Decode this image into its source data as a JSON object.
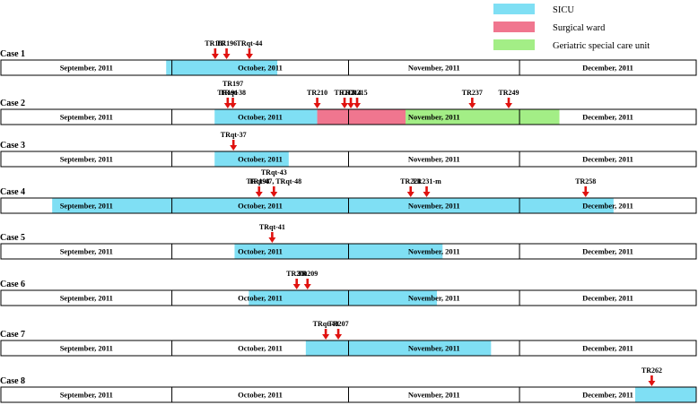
{
  "legend": [
    {
      "key": "sicu",
      "label": "SICU",
      "color": "#7fdff4"
    },
    {
      "key": "surgical",
      "label": "Surgical ward",
      "color": "#f0768f"
    },
    {
      "key": "geriatric",
      "label": "Geriatric special care unit",
      "color": "#a3ee86"
    }
  ],
  "colors": {
    "marker": "#e0120f",
    "border": "#000000"
  },
  "time_axis": {
    "start_day": 0,
    "end_day": 122
  },
  "months": [
    {
      "label": "September, 2011",
      "start_day": 0,
      "end_day": 30
    },
    {
      "label": "October, 2011",
      "start_day": 30,
      "end_day": 61
    },
    {
      "label": "November, 2011",
      "start_day": 61,
      "end_day": 91
    },
    {
      "label": "December, 2011",
      "start_day": 91,
      "end_day": 122
    }
  ],
  "cases": [
    {
      "label": "Case 1",
      "stays": [
        {
          "unit": "sicu",
          "start_day": 29,
          "end_day": 48.5
        }
      ],
      "markers": [
        {
          "day": 37.6,
          "label_lines": [
            "TR187"
          ]
        },
        {
          "day": 39.6,
          "label_lines": [
            "TR196"
          ]
        },
        {
          "day": 43.6,
          "label_lines": [
            "TRqt-44"
          ]
        }
      ]
    },
    {
      "label": "Case  2",
      "stays": [
        {
          "unit": "sicu",
          "start_day": 37.5,
          "end_day": 55.5
        },
        {
          "unit": "surgical",
          "start_day": 55.5,
          "end_day": 71
        },
        {
          "unit": "geriatric",
          "start_day": 71,
          "end_day": 98
        }
      ],
      "markers": [
        {
          "day": 39.8,
          "label_lines": [
            "TR191"
          ]
        },
        {
          "day": 40.7,
          "label_lines": [
            "TR197",
            "TRqt-38"
          ]
        },
        {
          "day": 55.5,
          "label_lines": [
            "TR210"
          ]
        },
        {
          "day": 60.3,
          "label_lines": [
            "TR213"
          ]
        },
        {
          "day": 61.4,
          "label_lines": [
            "TR214"
          ]
        },
        {
          "day": 62.5,
          "label_lines": [
            "TR215"
          ]
        },
        {
          "day": 82.7,
          "label_lines": [
            "TR237"
          ]
        },
        {
          "day": 89.1,
          "label_lines": [
            "TR249"
          ]
        }
      ]
    },
    {
      "label": "Case 3",
      "stays": [
        {
          "unit": "sicu",
          "start_day": 37.5,
          "end_day": 50.5
        }
      ],
      "markers": [
        {
          "day": 40.8,
          "label_lines": [
            "TRqt-37"
          ]
        }
      ]
    },
    {
      "label": "Case 4",
      "stays": [
        {
          "unit": "sicu",
          "start_day": 9,
          "end_day": 107.5
        }
      ],
      "markers": [
        {
          "day": 45.3,
          "label_lines": [
            "TR198"
          ]
        },
        {
          "day": 47.9,
          "label_lines": [
            "TRqt-43",
            "TRqt-47, TRqt-48"
          ]
        },
        {
          "day": 71.9,
          "label_lines": [
            "TR221"
          ]
        },
        {
          "day": 74.7,
          "label_lines": [
            "TR231-m"
          ]
        },
        {
          "day": 102.6,
          "label_lines": [
            "TR258"
          ]
        }
      ]
    },
    {
      "label": "Case 5",
      "stays": [
        {
          "unit": "sicu",
          "start_day": 41,
          "end_day": 77.5
        }
      ],
      "markers": [
        {
          "day": 47.6,
          "label_lines": [
            "TRqt-41"
          ]
        }
      ]
    },
    {
      "label": "Case 6",
      "stays": [
        {
          "unit": "sicu",
          "start_day": 43.5,
          "end_day": 76.5
        }
      ],
      "markers": [
        {
          "day": 51.9,
          "label_lines": [
            "TR200"
          ]
        },
        {
          "day": 53.8,
          "label_lines": [
            "TR209"
          ]
        }
      ]
    },
    {
      "label": "Case 7",
      "stays": [
        {
          "unit": "sicu",
          "start_day": 53.5,
          "end_day": 86
        }
      ],
      "markers": [
        {
          "day": 57,
          "label_lines": [
            "TRqt-49"
          ]
        },
        {
          "day": 59.2,
          "label_lines": [
            "TR207"
          ]
        }
      ]
    },
    {
      "label": "Case 8",
      "stays": [
        {
          "unit": "sicu",
          "start_day": 111.3,
          "end_day": 122
        }
      ],
      "markers": [
        {
          "day": 114.2,
          "label_lines": [
            "TR262"
          ]
        }
      ]
    }
  ]
}
